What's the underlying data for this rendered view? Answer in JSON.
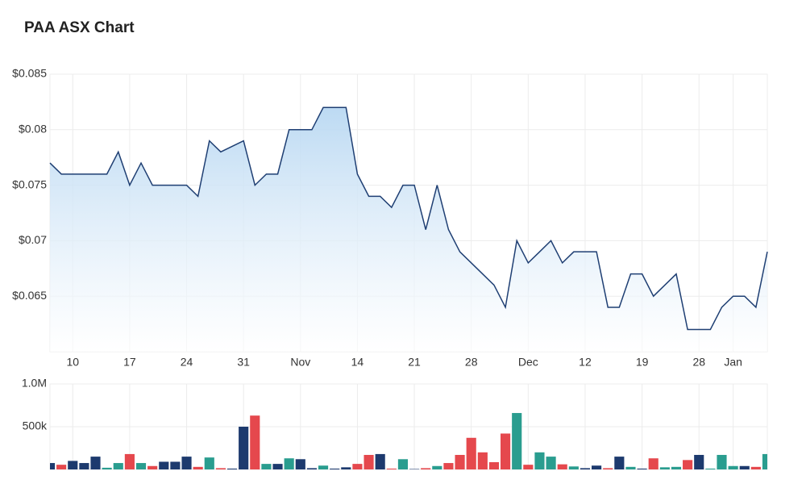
{
  "chart_data": [
    {
      "type": "area",
      "title": "PAA ASX Chart",
      "categories": [
        null,
        null,
        "10",
        null,
        null,
        null,
        null,
        "17",
        null,
        null,
        null,
        null,
        "24",
        null,
        null,
        null,
        null,
        "31",
        null,
        null,
        null,
        null,
        "Nov",
        null,
        null,
        null,
        null,
        "14",
        null,
        null,
        null,
        null,
        "21",
        null,
        null,
        null,
        null,
        "28",
        null,
        null,
        null,
        null,
        "Dec",
        null,
        null,
        null,
        null,
        "12",
        null,
        null,
        null,
        null,
        "19",
        null,
        null,
        null,
        null,
        "28",
        null,
        null,
        "Jan",
        null,
        null,
        null
      ],
      "values": [
        0.077,
        0.076,
        0.076,
        0.076,
        0.076,
        0.076,
        0.078,
        0.075,
        0.077,
        0.075,
        0.075,
        0.075,
        0.075,
        0.074,
        0.079,
        0.078,
        0.0785,
        0.079,
        0.075,
        0.076,
        0.076,
        0.08,
        0.08,
        0.08,
        0.082,
        0.082,
        0.082,
        0.076,
        0.074,
        0.074,
        0.073,
        0.075,
        0.075,
        0.071,
        0.075,
        0.071,
        0.069,
        0.068,
        0.067,
        0.066,
        0.064,
        0.07,
        0.068,
        0.069,
        0.07,
        0.068,
        0.069,
        0.069,
        0.069,
        0.064,
        0.064,
        0.067,
        0.067,
        0.065,
        0.066,
        0.067,
        0.062,
        0.062,
        0.062,
        0.064,
        0.065,
        0.065,
        0.064,
        0.069
      ],
      "color": "#1f3f73",
      "fill": "#b9d8f2",
      "grid": true,
      "ylim": [
        0.06,
        0.085
      ],
      "yticks": [
        {
          "value": 0.065,
          "label": "$0.065"
        },
        {
          "value": 0.07,
          "label": "$0.07"
        },
        {
          "value": 0.075,
          "label": "$0.075"
        },
        {
          "value": 0.08,
          "label": "$0.08"
        },
        {
          "value": 0.085,
          "label": "$0.085"
        }
      ]
    },
    {
      "type": "bar",
      "values": [
        75000,
        55000,
        100000,
        75000,
        150000,
        20000,
        75000,
        180000,
        75000,
        40000,
        90000,
        90000,
        150000,
        30000,
        140000,
        15000,
        10000,
        500000,
        630000,
        65000,
        65000,
        130000,
        120000,
        15000,
        45000,
        10000,
        25000,
        65000,
        170000,
        180000,
        10000,
        120000,
        5000,
        15000,
        40000,
        75000,
        170000,
        370000,
        200000,
        85000,
        420000,
        660000,
        55000,
        200000,
        150000,
        60000,
        35000,
        15000,
        45000,
        15000,
        150000,
        30000,
        10000,
        130000,
        25000,
        30000,
        110000,
        170000,
        10000,
        170000,
        40000,
        40000,
        30000,
        180000
      ],
      "colors": [
        "#1d3a6e",
        "#e5484d",
        "#1d3a6e",
        "#1d3a6e",
        "#1d3a6e",
        "#2a9d8f",
        "#2a9d8f",
        "#e5484d",
        "#2a9d8f",
        "#e5484d",
        "#1d3a6e",
        "#1d3a6e",
        "#1d3a6e",
        "#e5484d",
        "#2a9d8f",
        "#e5484d",
        "#1d3a6e",
        "#1d3a6e",
        "#e5484d",
        "#2a9d8f",
        "#1d3a6e",
        "#2a9d8f",
        "#1d3a6e",
        "#1d3a6e",
        "#2a9d8f",
        "#1d3a6e",
        "#1d3a6e",
        "#e5484d",
        "#e5484d",
        "#1d3a6e",
        "#e5484d",
        "#2a9d8f",
        "#1d3a6e",
        "#e5484d",
        "#2a9d8f",
        "#e5484d",
        "#e5484d",
        "#e5484d",
        "#e5484d",
        "#e5484d",
        "#e5484d",
        "#2a9d8f",
        "#e5484d",
        "#2a9d8f",
        "#2a9d8f",
        "#e5484d",
        "#2a9d8f",
        "#1d3a6e",
        "#1d3a6e",
        "#e5484d",
        "#1d3a6e",
        "#2a9d8f",
        "#1d3a6e",
        "#e5484d",
        "#2a9d8f",
        "#2a9d8f",
        "#e5484d",
        "#1d3a6e",
        "#2a9d8f",
        "#2a9d8f",
        "#2a9d8f",
        "#1d3a6e",
        "#e5484d",
        "#2a9d8f"
      ],
      "ylim": [
        0,
        1000000
      ],
      "yticks": [
        {
          "value": 500000,
          "label": "500k"
        },
        {
          "value": 1000000,
          "label": "1.0M"
        }
      ]
    }
  ]
}
